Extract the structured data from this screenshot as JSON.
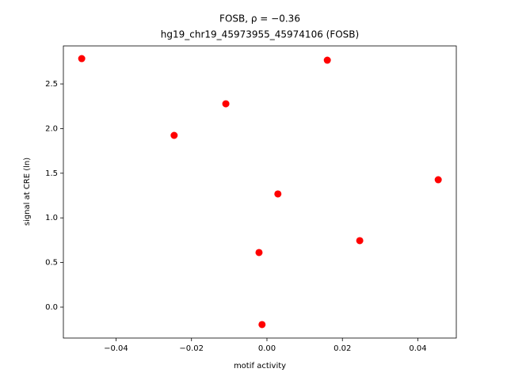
{
  "chart_data": {
    "type": "scatter",
    "title": "FOSB, ρ = −0.36",
    "subtitle": "hg19_chr19_45973955_45974106 (FOSB)",
    "x_label": "motif activity",
    "y_label": "signal at CRE (ln)",
    "series": [
      {
        "color": "#ff0000",
        "x": [
          -0.0491,
          -0.0246,
          -0.0109,
          -0.0021,
          -0.0013,
          0.0029,
          0.016,
          0.0246,
          0.0454
        ],
        "values": [
          2.784,
          1.924,
          2.278,
          0.612,
          -0.195,
          1.268,
          2.766,
          0.745,
          1.427
        ]
      }
    ],
    "xlim": [
      -0.05396,
      0.05019
    ],
    "ylim": [
      -0.346,
      2.926
    ],
    "xticks": [
      {
        "value": -0.04,
        "label": "−0.04"
      },
      {
        "value": -0.02,
        "label": "−0.02"
      },
      {
        "value": 0,
        "label": "0.00"
      },
      0.02,
      0.04
    ],
    "yticks": [
      {
        "value": 0,
        "label": "0.0"
      },
      0.5,
      {
        "value": 1,
        "label": "1.0"
      },
      1.5,
      {
        "value": 2,
        "label": "2.0"
      },
      2.5
    ],
    "grid": false
  }
}
